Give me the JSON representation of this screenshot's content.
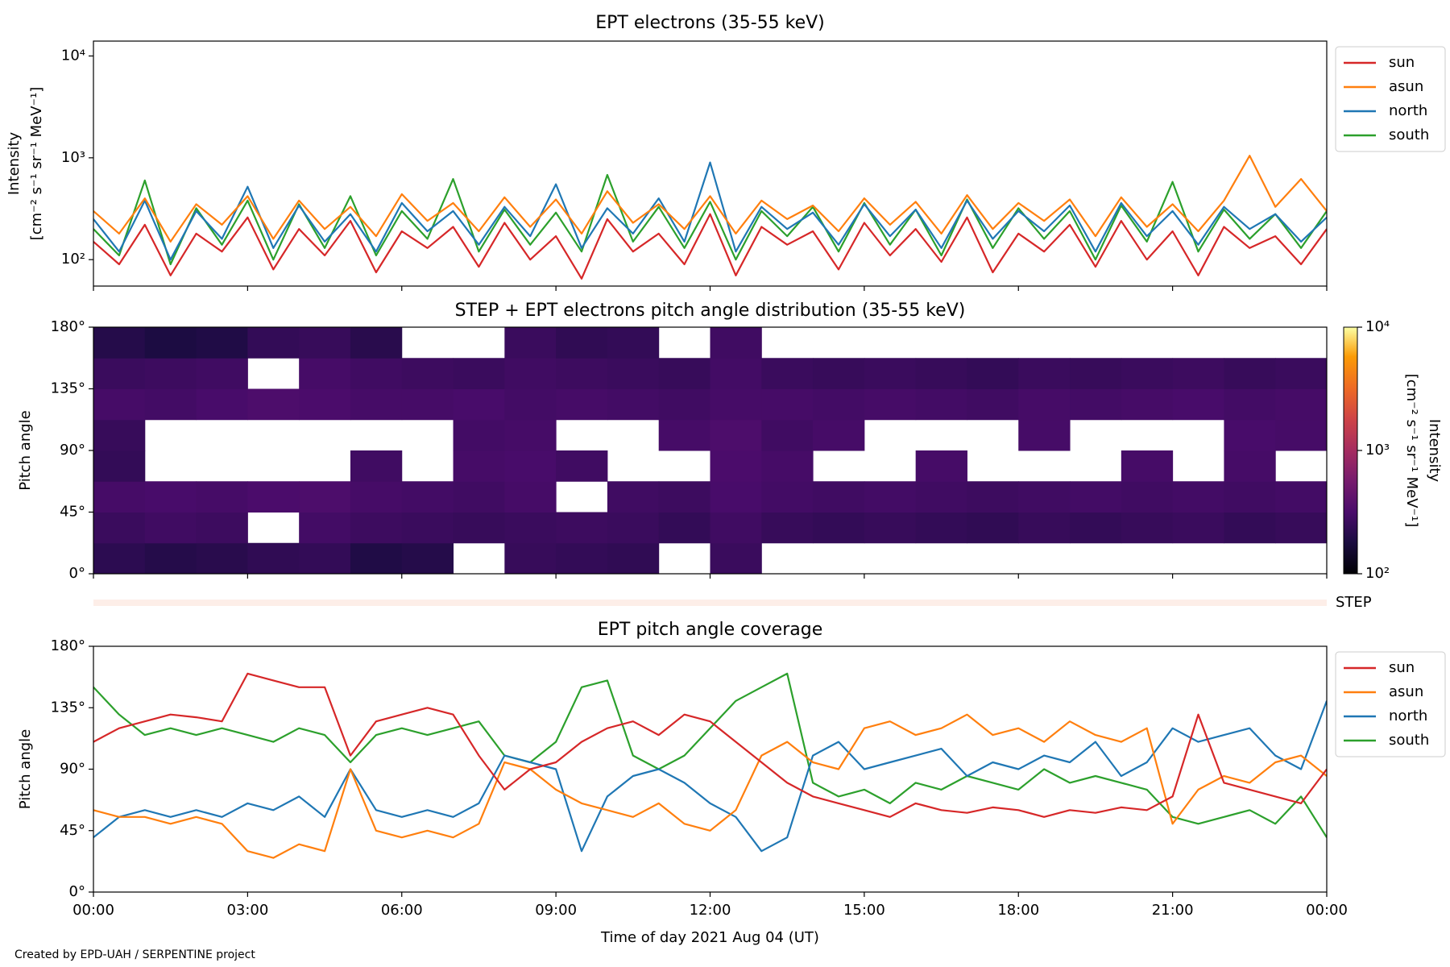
{
  "chart_data": [
    {
      "type": "line",
      "title": "EPT electrons (35-55 keV)",
      "ylabel": [
        "Intensity",
        "[cm⁻² s⁻¹ sr⁻¹ MeV⁻¹]"
      ],
      "yscale": "log",
      "ylim": [
        55,
        14000
      ],
      "yticks": [
        {
          "value": 100,
          "label": "10²"
        },
        {
          "value": 1000,
          "label": "10³"
        },
        {
          "value": 10000,
          "label": "10⁴"
        }
      ],
      "xlim": [
        0,
        24
      ],
      "legend": "outside upper right",
      "x": [
        0,
        0.5,
        1,
        1.5,
        2,
        2.5,
        3,
        3.5,
        4,
        4.5,
        5,
        5.5,
        6,
        6.5,
        7,
        7.5,
        8,
        8.5,
        9,
        9.5,
        10,
        10.5,
        11,
        11.5,
        12,
        12.5,
        13,
        13.5,
        14,
        14.5,
        15,
        15.5,
        16,
        16.5,
        17,
        17.5,
        18,
        18.5,
        19,
        19.5,
        20,
        20.5,
        21,
        21.5,
        22,
        22.5,
        23,
        23.5,
        24
      ],
      "series": [
        {
          "name": "sun",
          "color": "#d62728",
          "values": [
            150,
            90,
            220,
            70,
            180,
            120,
            260,
            80,
            200,
            110,
            240,
            75,
            190,
            130,
            210,
            85,
            230,
            100,
            170,
            65,
            250,
            120,
            180,
            90,
            280,
            70,
            210,
            140,
            190,
            80,
            230,
            110,
            200,
            95,
            260,
            75,
            180,
            120,
            220,
            85,
            240,
            100,
            190,
            70,
            210,
            130,
            170,
            90,
            200
          ]
        },
        {
          "name": "asun",
          "color": "#ff7f0e",
          "values": [
            300,
            180,
            400,
            150,
            350,
            220,
            420,
            160,
            380,
            200,
            330,
            170,
            440,
            240,
            360,
            190,
            410,
            210,
            390,
            180,
            470,
            230,
            350,
            200,
            420,
            180,
            380,
            250,
            340,
            190,
            400,
            220,
            370,
            180,
            430,
            200,
            360,
            240,
            390,
            170,
            410,
            210,
            350,
            190,
            380,
            1050,
            330,
            620,
            300
          ]
        },
        {
          "name": "north",
          "color": "#1f77b4",
          "values": [
            250,
            120,
            380,
            100,
            300,
            160,
            520,
            130,
            340,
            150,
            280,
            120,
            360,
            190,
            300,
            140,
            330,
            170,
            550,
            130,
            320,
            180,
            400,
            150,
            900,
            120,
            330,
            200,
            290,
            140,
            350,
            170,
            310,
            130,
            380,
            160,
            300,
            190,
            340,
            120,
            360,
            170,
            300,
            140,
            330,
            200,
            280,
            150,
            260
          ]
        },
        {
          "name": "south",
          "color": "#2ca02c",
          "values": [
            200,
            110,
            600,
            90,
            320,
            140,
            380,
            100,
            350,
            130,
            420,
            110,
            300,
            160,
            620,
            120,
            310,
            140,
            290,
            120,
            680,
            150,
            330,
            130,
            370,
            100,
            300,
            170,
            330,
            120,
            360,
            140,
            310,
            110,
            390,
            130,
            320,
            160,
            300,
            100,
            340,
            150,
            580,
            120,
            310,
            160,
            280,
            130,
            300
          ]
        }
      ]
    },
    {
      "type": "heatmap",
      "title": "STEP + EPT electrons pitch angle distribution (35-55 keV)",
      "ylabel": "Pitch angle",
      "xlim": [
        0,
        24
      ],
      "ylim": [
        0,
        180
      ],
      "yticks": [
        {
          "value": 0,
          "label": "0°"
        },
        {
          "value": 45,
          "label": "45°"
        },
        {
          "value": 90,
          "label": "90°"
        },
        {
          "value": 135,
          "label": "135°"
        },
        {
          "value": 180,
          "label": "180°"
        }
      ],
      "x_edges": [
        0,
        1,
        2,
        3,
        4,
        5,
        6,
        7,
        8,
        9,
        10,
        11,
        12,
        13,
        14,
        15,
        16,
        17,
        18,
        19,
        20,
        21,
        22,
        23,
        24
      ],
      "y_edges": [
        0,
        22.5,
        45,
        67.5,
        90,
        112.5,
        135,
        157.5,
        180
      ],
      "colormap": "inferno",
      "cscale": "log",
      "clim": [
        100,
        10000
      ],
      "cticks": [
        {
          "value": 100,
          "label": "10²"
        },
        {
          "value": 1000,
          "label": "10³"
        },
        {
          "value": 10000,
          "label": "10⁴"
        }
      ],
      "clabel": [
        "Intensity",
        "[cm⁻² s⁻¹ sr⁻¹ MeV⁻¹]"
      ],
      "z": [
        [
          220,
          260,
          300,
          240,
          250,
          300,
          260,
          200
        ],
        [
          200,
          280,
          310,
          null,
          null,
          290,
          270,
          180
        ],
        [
          210,
          270,
          300,
          null,
          null,
          310,
          280,
          190
        ],
        [
          230,
          null,
          320,
          null,
          null,
          330,
          null,
          240
        ],
        [
          240,
          290,
          330,
          null,
          null,
          320,
          300,
          250
        ],
        [
          190,
          270,
          300,
          280,
          null,
          300,
          280,
          210
        ],
        [
          200,
          260,
          290,
          null,
          null,
          300,
          270,
          null
        ],
        [
          null,
          250,
          280,
          300,
          290,
          310,
          260,
          null
        ],
        [
          250,
          260,
          300,
          310,
          300,
          290,
          280,
          260
        ],
        [
          240,
          270,
          null,
          280,
          null,
          300,
          270,
          230
        ],
        [
          230,
          260,
          280,
          null,
          null,
          290,
          260,
          240
        ],
        [
          null,
          240,
          270,
          null,
          300,
          280,
          250,
          null
        ],
        [
          260,
          280,
          310,
          320,
          330,
          300,
          290,
          280
        ],
        [
          null,
          250,
          290,
          300,
          280,
          300,
          260,
          null
        ],
        [
          null,
          240,
          280,
          null,
          300,
          290,
          250,
          null
        ],
        [
          null,
          250,
          290,
          null,
          null,
          300,
          260,
          null
        ],
        [
          null,
          240,
          280,
          300,
          null,
          290,
          250,
          null
        ],
        [
          null,
          230,
          270,
          null,
          null,
          280,
          240,
          null
        ],
        [
          null,
          250,
          280,
          null,
          300,
          300,
          260,
          null
        ],
        [
          null,
          240,
          290,
          null,
          null,
          290,
          250,
          null
        ],
        [
          null,
          250,
          280,
          300,
          null,
          300,
          260,
          null
        ],
        [
          null,
          260,
          290,
          null,
          null,
          310,
          270,
          null
        ],
        [
          null,
          240,
          280,
          300,
          310,
          290,
          250,
          null
        ],
        [
          null,
          250,
          290,
          null,
          300,
          300,
          260,
          null
        ]
      ],
      "step_label": "STEP"
    },
    {
      "type": "line",
      "title": "EPT pitch angle coverage",
      "ylabel": "Pitch angle",
      "xlabel": "Time of day 2021 Aug 04 (UT)",
      "ylim": [
        0,
        180
      ],
      "yticks": [
        {
          "value": 0,
          "label": "0°"
        },
        {
          "value": 45,
          "label": "45°"
        },
        {
          "value": 90,
          "label": "90°"
        },
        {
          "value": 135,
          "label": "135°"
        },
        {
          "value": 180,
          "label": "180°"
        }
      ],
      "xlim": [
        0,
        24
      ],
      "xticks": [
        {
          "value": 0,
          "label": "00:00"
        },
        {
          "value": 3,
          "label": "03:00"
        },
        {
          "value": 6,
          "label": "06:00"
        },
        {
          "value": 9,
          "label": "09:00"
        },
        {
          "value": 12,
          "label": "12:00"
        },
        {
          "value": 15,
          "label": "15:00"
        },
        {
          "value": 18,
          "label": "18:00"
        },
        {
          "value": 21,
          "label": "21:00"
        },
        {
          "value": 24,
          "label": "00:00"
        }
      ],
      "legend": "outside upper right",
      "x": [
        0,
        0.5,
        1,
        1.5,
        2,
        2.5,
        3,
        3.5,
        4,
        4.5,
        5,
        5.5,
        6,
        6.5,
        7,
        7.5,
        8,
        8.5,
        9,
        9.5,
        10,
        10.5,
        11,
        11.5,
        12,
        12.5,
        13,
        13.5,
        14,
        14.5,
        15,
        15.5,
        16,
        16.5,
        17,
        17.5,
        18,
        18.5,
        19,
        19.5,
        20,
        20.5,
        21,
        21.5,
        22,
        22.5,
        23,
        23.5,
        24
      ],
      "series": [
        {
          "name": "sun",
          "color": "#d62728",
          "values": [
            110,
            120,
            125,
            130,
            128,
            125,
            160,
            155,
            150,
            150,
            100,
            125,
            130,
            135,
            130,
            100,
            75,
            90,
            95,
            110,
            120,
            125,
            115,
            130,
            125,
            110,
            95,
            80,
            70,
            65,
            60,
            55,
            65,
            60,
            58,
            62,
            60,
            55,
            60,
            58,
            62,
            60,
            70,
            130,
            80,
            75,
            70,
            65,
            90
          ]
        },
        {
          "name": "asun",
          "color": "#ff7f0e",
          "values": [
            60,
            55,
            55,
            50,
            55,
            50,
            30,
            25,
            35,
            30,
            90,
            45,
            40,
            45,
            40,
            50,
            95,
            90,
            75,
            65,
            60,
            55,
            65,
            50,
            45,
            60,
            100,
            110,
            95,
            90,
            120,
            125,
            115,
            120,
            130,
            115,
            120,
            110,
            125,
            115,
            110,
            120,
            50,
            75,
            85,
            80,
            95,
            100,
            85
          ]
        },
        {
          "name": "north",
          "color": "#1f77b4",
          "values": [
            40,
            55,
            60,
            55,
            60,
            55,
            65,
            60,
            70,
            55,
            90,
            60,
            55,
            60,
            55,
            65,
            100,
            95,
            90,
            30,
            70,
            85,
            90,
            80,
            65,
            55,
            30,
            40,
            100,
            110,
            90,
            95,
            100,
            105,
            85,
            95,
            90,
            100,
            95,
            110,
            85,
            95,
            120,
            110,
            115,
            120,
            100,
            90,
            140
          ]
        },
        {
          "name": "south",
          "color": "#2ca02c",
          "values": [
            150,
            130,
            115,
            120,
            115,
            120,
            115,
            110,
            120,
            115,
            95,
            115,
            120,
            115,
            120,
            125,
            100,
            95,
            110,
            150,
            155,
            100,
            90,
            100,
            120,
            140,
            150,
            160,
            80,
            70,
            75,
            65,
            80,
            75,
            85,
            80,
            75,
            90,
            80,
            85,
            80,
            75,
            55,
            50,
            55,
            60,
            50,
            70,
            40
          ]
        }
      ]
    }
  ],
  "footer": "Created by EPD-UAH / SERPENTINE project"
}
